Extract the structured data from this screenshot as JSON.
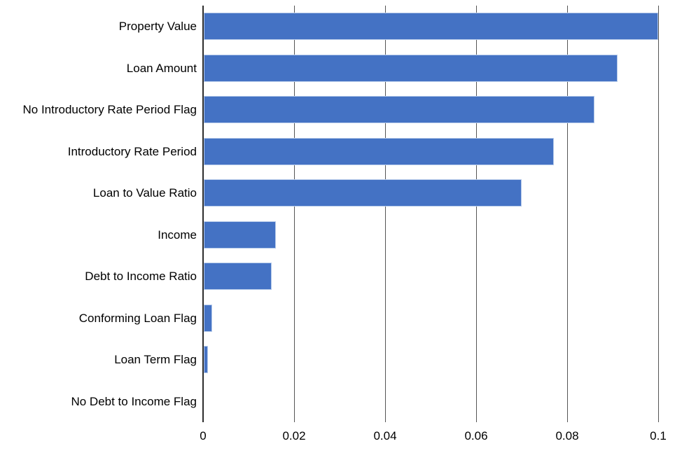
{
  "chart_data": {
    "type": "bar",
    "orientation": "horizontal",
    "categories": [
      "Property Value",
      "Loan Amount",
      "No Introductory Rate Period Flag",
      "Introductory Rate Period",
      "Loan to Value Ratio",
      "Income",
      "Debt to Income Ratio",
      "Conforming Loan Flag",
      "Loan Term Flag",
      "No Debt to Income Flag"
    ],
    "values": [
      0.1,
      0.091,
      0.086,
      0.077,
      0.07,
      0.016,
      0.015,
      0.002,
      0.001,
      0
    ],
    "xlim": [
      0,
      0.1
    ],
    "x_ticks": [
      0,
      0.02,
      0.04,
      0.06,
      0.08,
      0.1
    ],
    "x_tick_labels": [
      "0",
      "0.02",
      "0.04",
      "0.06",
      "0.08",
      "0.1"
    ],
    "xlabel": "",
    "ylabel": "",
    "grid": true,
    "legend": false
  },
  "colors": {
    "bar_fill": "#4472c4",
    "bar_border": "#b7cbea",
    "gridline": "#555555",
    "zero_line": "#2d2d2d",
    "text": "#000000",
    "background": "#ffffff"
  }
}
